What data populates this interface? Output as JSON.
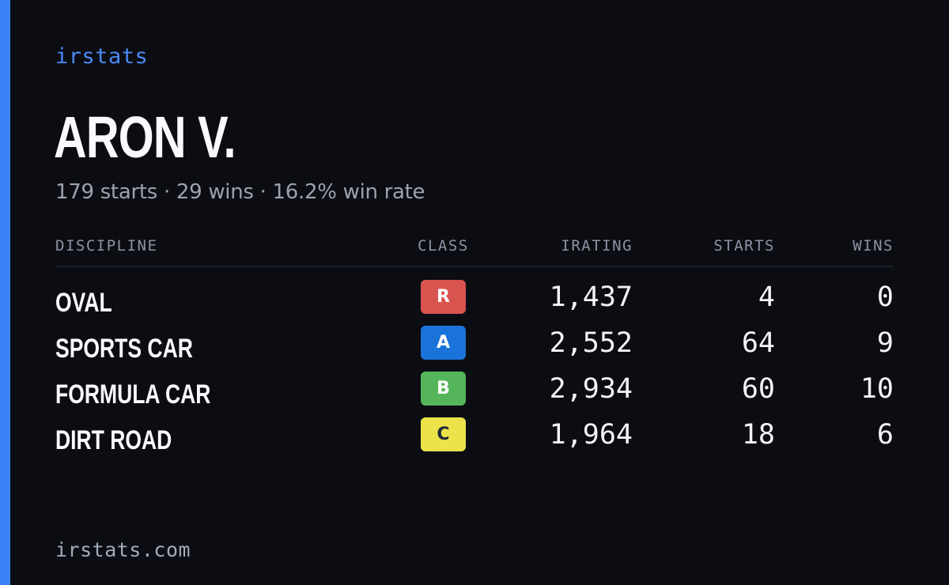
{
  "brand": "irstats",
  "driver": {
    "name": "ARON V.",
    "summary": "179 starts · 29 wins · 16.2% win rate"
  },
  "table": {
    "headers": {
      "discipline": "DISCIPLINE",
      "class": "CLASS",
      "irating": "IRATING",
      "starts": "STARTS",
      "wins": "WINS"
    },
    "rows": [
      {
        "discipline": "OVAL",
        "class": "R",
        "class_color": "#d9534f",
        "class_text_color": "#ffffff",
        "irating": "1,437",
        "starts": "4",
        "wins": "0"
      },
      {
        "discipline": "SPORTS CAR",
        "class": "A",
        "class_color": "#1a73d9",
        "class_text_color": "#ffffff",
        "irating": "2,552",
        "starts": "64",
        "wins": "9"
      },
      {
        "discipline": "FORMULA CAR",
        "class": "B",
        "class_color": "#55b55a",
        "class_text_color": "#ffffff",
        "irating": "2,934",
        "starts": "60",
        "wins": "10"
      },
      {
        "discipline": "DIRT ROAD",
        "class": "C",
        "class_color": "#ece34a",
        "class_text_color": "#1f2937",
        "irating": "1,964",
        "starts": "18",
        "wins": "6"
      }
    ]
  },
  "footer": "irstats.com",
  "colors": {
    "accent": "#3b82f6",
    "background": "#0b0d13"
  }
}
